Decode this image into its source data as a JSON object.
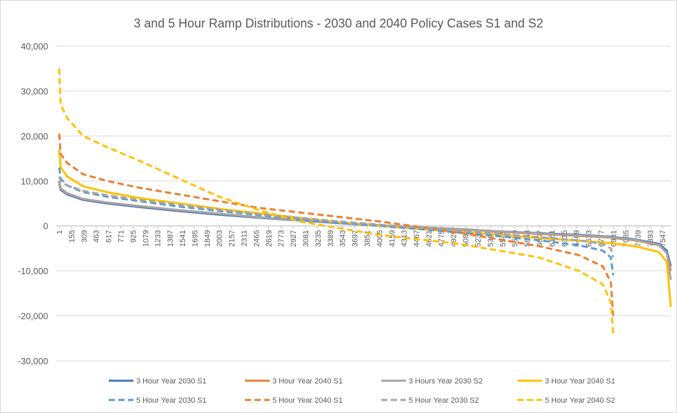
{
  "chart_data": {
    "type": "line",
    "title": "3 and 5 Hour Ramp Distributions - 2030 and 2040 Policy Cases S1 and S2",
    "x": [
      1,
      20,
      100,
      300,
      600,
      1000,
      1500,
      2000,
      2500,
      3000,
      3500,
      4000,
      4500,
      5000,
      5500,
      6000,
      6500,
      6800,
      6900,
      6930,
      7200,
      7500,
      7600,
      7650
    ],
    "xlim": [
      1,
      7650
    ],
    "xticks": [
      1,
      155,
      309,
      463,
      617,
      771,
      925,
      1079,
      1233,
      1387,
      1541,
      1695,
      1849,
      2003,
      2157,
      2311,
      2465,
      2619,
      2773,
      2927,
      3081,
      3235,
      3389,
      3543,
      3697,
      3851,
      4005,
      4159,
      4313,
      4467,
      4621,
      4775,
      4929,
      5083,
      5237,
      5391,
      5545,
      5699,
      5853,
      6007,
      6161,
      6315,
      6469,
      6623,
      6777,
      6931,
      7085,
      7239,
      7393,
      7547
    ],
    "ylim": [
      -30000,
      40000
    ],
    "yticks": [
      {
        "value": -30000,
        "label": "-30,000"
      },
      {
        "value": -20000,
        "label": "-20,000"
      },
      {
        "value": -10000,
        "label": "-10,000"
      },
      0,
      {
        "value": 10000,
        "label": "10,000"
      },
      {
        "value": 20000,
        "label": "20,000"
      },
      {
        "value": 30000,
        "label": "30,000"
      },
      {
        "value": 40000,
        "label": "40,000"
      }
    ],
    "grid": true,
    "legend": "bottom",
    "series": [
      {
        "name": "3 Hour Year 2030 S1",
        "color": "#4472c4",
        "dash": false,
        "values": [
          9500,
          8000,
          7000,
          5800,
          5000,
          4200,
          3300,
          2500,
          1800,
          1200,
          600,
          100,
          -300,
          -700,
          -1200,
          -1600,
          -2000,
          -2300,
          -2400,
          -2500,
          -3000,
          -4000,
          -5500,
          -9000
        ]
      },
      {
        "name": "3 Hour Year 2040 S1",
        "color": "#ed7d31",
        "dash": false,
        "values": [
          10000,
          8400,
          7300,
          6000,
          5200,
          4400,
          3500,
          2700,
          1900,
          1300,
          700,
          150,
          -300,
          -800,
          -1300,
          -1800,
          -2200,
          -2500,
          -2600,
          -2700,
          -3200,
          -4300,
          -6000,
          -10000
        ]
      },
      {
        "name": "3 Hours Year 2030 S2",
        "color": "#a5a5a5",
        "dash": false,
        "values": [
          9800,
          8300,
          7200,
          6000,
          5200,
          4400,
          3500,
          2700,
          1900,
          1300,
          700,
          150,
          -300,
          -700,
          -1200,
          -1700,
          -2100,
          -2400,
          -2500,
          -2600,
          -3100,
          -4200,
          -6000,
          -12000
        ]
      },
      {
        "name": "3 Hour Year 2040 S1",
        "color": "#ffc000",
        "dash": false,
        "values": [
          17000,
          13000,
          11000,
          8800,
          7500,
          6200,
          5000,
          3800,
          2800,
          1800,
          800,
          0,
          -700,
          -1300,
          -2000,
          -2700,
          -3300,
          -3700,
          -3800,
          -3900,
          -4500,
          -5800,
          -8000,
          -18000
        ]
      },
      {
        "name": "5 Hour Year 2030 S1",
        "color": "#5b9bd5",
        "dash": true,
        "values": [
          13000,
          10500,
          9000,
          7500,
          6500,
          5500,
          4300,
          3300,
          2400,
          1500,
          700,
          0,
          -700,
          -1500,
          -2300,
          -3200,
          -4300,
          -5500,
          -7000,
          -11000,
          null,
          null,
          null,
          null
        ]
      },
      {
        "name": "5 Hour Year 2040 S1",
        "color": "#ed7d31",
        "dash": true,
        "values": [
          20500,
          16000,
          14000,
          11500,
          10000,
          8500,
          7000,
          5500,
          4000,
          3000,
          2000,
          1000,
          -200,
          -1500,
          -3000,
          -4500,
          -6500,
          -9000,
          -12500,
          -20000,
          null,
          null,
          null,
          null
        ]
      },
      {
        "name": "5 Hour Year 2030 S2",
        "color": "#a5a5a5",
        "dash": true,
        "values": [
          11000,
          10000,
          9000,
          7800,
          6800,
          5800,
          4700,
          3600,
          2600,
          1800,
          1000,
          300,
          -400,
          -1000,
          -1800,
          -2500,
          -3200,
          -4000,
          -5000,
          -7000,
          null,
          null,
          null,
          null
        ]
      },
      {
        "name": "5 Hour Year 2040 S2",
        "color": "#ffc000",
        "dash": true,
        "values": [
          35000,
          27000,
          24000,
          20000,
          17500,
          14500,
          10500,
          6500,
          3500,
          1000,
          -500,
          -2000,
          -3000,
          -4000,
          -5500,
          -7000,
          -10000,
          -13000,
          -17000,
          -24000,
          null,
          null,
          null,
          null
        ]
      }
    ]
  }
}
